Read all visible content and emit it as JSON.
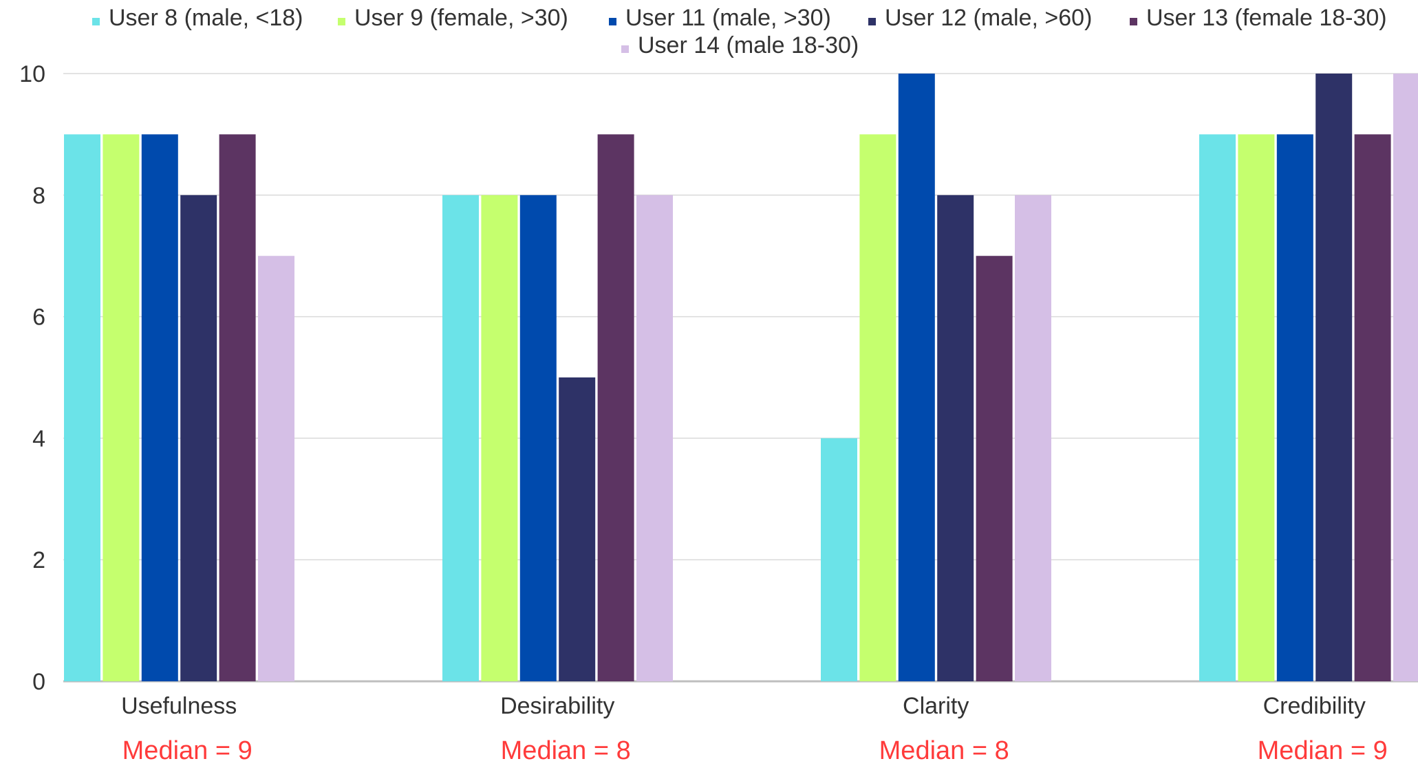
{
  "chart_data": {
    "type": "bar",
    "title": "",
    "xlabel": "",
    "ylabel": "",
    "ylim": [
      0,
      10
    ],
    "yticks": [
      0,
      2,
      4,
      6,
      8,
      10
    ],
    "ytick_labels": [
      "0",
      "2",
      "4",
      "6",
      "8",
      "10"
    ],
    "grid": true,
    "legend_position": "top",
    "categories": [
      "Usefulness",
      "Desirability",
      "Clarity",
      "Credibility"
    ],
    "series": [
      {
        "name": "User 8 (male, <18)",
        "color": "#6BE3E8",
        "values": [
          9,
          8,
          4,
          9
        ]
      },
      {
        "name": "User 9 (female, >30)",
        "color": "#C5FF6E",
        "values": [
          9,
          8,
          9,
          9
        ]
      },
      {
        "name": "User 11 (male, >30)",
        "color": "#004AAD",
        "values": [
          9,
          8,
          10,
          9
        ]
      },
      {
        "name": "User 12 (male, >60)",
        "color": "#2E3267",
        "values": [
          8,
          5,
          8,
          10
        ]
      },
      {
        "name": "User 13 (female 18-30)",
        "color": "#5C3462",
        "values": [
          9,
          9,
          7,
          9
        ]
      },
      {
        "name": "User 14 (male 18-30)",
        "color": "#D5BFE6",
        "values": [
          7,
          8,
          8,
          10
        ]
      }
    ],
    "annotations": [
      "Median = 9",
      "Median = 8",
      "Median = 8",
      "Median = 9"
    ],
    "annotation_color": "#FF3B3B",
    "grid_color": "#DADADA",
    "axis_color": "#BFBFBF",
    "text_color": "#333333"
  }
}
